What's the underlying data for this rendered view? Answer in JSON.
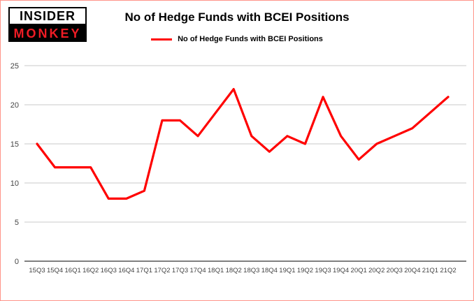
{
  "logo": {
    "line1": "INSIDER",
    "line2": "MONKEY"
  },
  "title": "No of Hedge Funds with BCEI Positions",
  "legend": {
    "label": "No of Hedge Funds with BCEI Positions"
  },
  "colors": {
    "line": "#ff0000",
    "grid": "#c8c8c8",
    "axis": "#333333",
    "tick_text": "#444444",
    "logo_red": "#ee1c25"
  },
  "chart_data": {
    "type": "line",
    "title": "No of Hedge Funds with BCEI Positions",
    "xlabel": "",
    "ylabel": "",
    "categories": [
      "15Q3",
      "15Q4",
      "16Q1",
      "16Q2",
      "16Q3",
      "16Q4",
      "17Q1",
      "17Q2",
      "17Q3",
      "17Q4",
      "18Q1",
      "18Q2",
      "18Q3",
      "18Q4",
      "19Q1",
      "19Q2",
      "19Q3",
      "19Q4",
      "20Q1",
      "20Q2",
      "20Q3",
      "20Q4",
      "21Q1",
      "21Q2"
    ],
    "series": [
      {
        "name": "No of Hedge Funds with BCEI Positions",
        "values": [
          15,
          12,
          12,
          12,
          8,
          8,
          9,
          18,
          18,
          16,
          19,
          22,
          16,
          14,
          16,
          15,
          21,
          16,
          13,
          15,
          16,
          17,
          19,
          21
        ]
      }
    ],
    "ylim": [
      0,
      25
    ],
    "yticks": [
      0,
      5,
      10,
      15,
      20,
      25
    ],
    "grid": true,
    "legend_position": "top"
  }
}
